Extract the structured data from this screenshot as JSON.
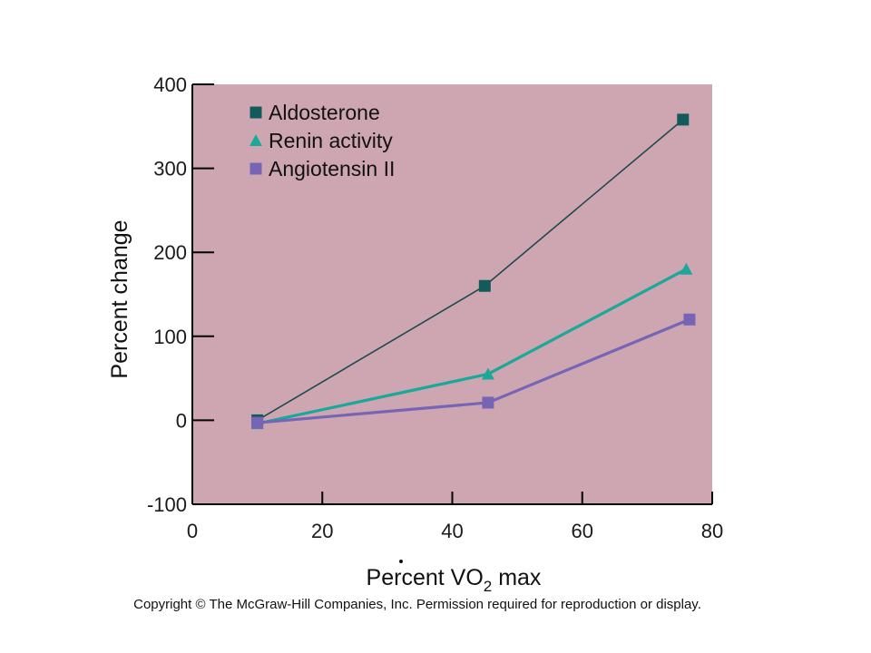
{
  "chart_data": {
    "type": "line",
    "xlabel_prefix": "Percent V",
    "xlabel_sub": "O",
    "xlabel_subscript": "2",
    "xlabel_suffix": " max",
    "ylabel": "Percent change",
    "xlim": [
      0,
      80
    ],
    "ylim": [
      -100,
      400
    ],
    "xticks": [
      0,
      20,
      40,
      60,
      80
    ],
    "yticks": [
      -100,
      0,
      100,
      200,
      300,
      400
    ],
    "grid": false,
    "legend_position": "top-left",
    "plot_background": "#cea6b2",
    "series": [
      {
        "name": "Aldosterone",
        "marker": "square",
        "color": "#125a5c",
        "line_color": "#1e4a4e",
        "x": [
          10,
          45,
          75.5
        ],
        "y": [
          0,
          160,
          358
        ]
      },
      {
        "name": "Renin activity",
        "marker": "triangle",
        "color": "#1aa898",
        "line_color": "#1aa898",
        "x": [
          10,
          45.5,
          76
        ],
        "y": [
          -4,
          55,
          180
        ]
      },
      {
        "name": "Angiotensin II",
        "marker": "square",
        "color": "#7665b4",
        "line_color": "#7665b4",
        "x": [
          10,
          45.5,
          76.5
        ],
        "y": [
          -3,
          21,
          120
        ]
      }
    ]
  },
  "footer": {
    "copyright": "Copyright © The McGraw-Hill Companies, Inc. Permission required for reproduction or display."
  }
}
